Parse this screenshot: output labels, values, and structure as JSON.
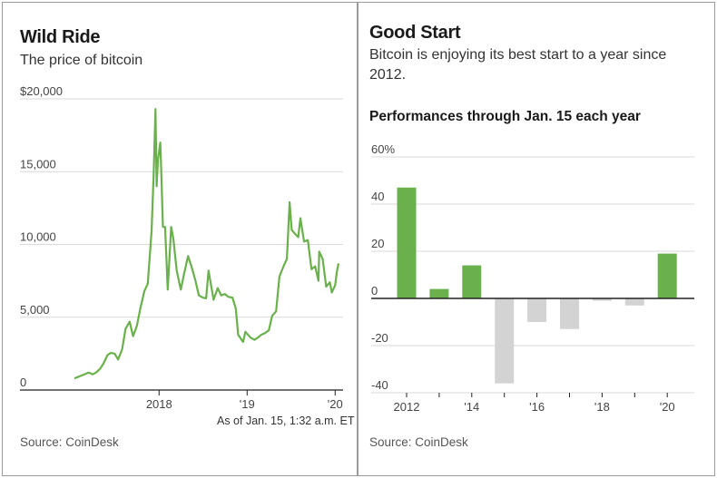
{
  "left": {
    "title": "Wild Ride",
    "subtitle": "The price of bitcoin",
    "note": "As of Jan. 15, 1:32 a.m. ET",
    "source": "Source: CoinDesk"
  },
  "right": {
    "title": "Good Start",
    "subtitle": "Bitcoin is enjoying its best start to a year since 2012.",
    "heading": "Performances through Jan. 15 each year",
    "source": "Source: CoinDesk"
  },
  "colors": {
    "green": "#6ab04c",
    "gray": "#d3d3d3",
    "grid": "#d9d9d9",
    "axis": "#222222"
  },
  "chart_data": [
    {
      "type": "line",
      "title": "Wild Ride",
      "subtitle": "The price of bitcoin",
      "x_ticks": [
        "2018",
        "'19",
        "'20"
      ],
      "y_ticks": [
        "$20,000",
        "15,000",
        "10,000",
        "5,000",
        "0"
      ],
      "ylim": [
        0,
        20000
      ],
      "xlim": [
        "2017-01-15",
        "2020-01-15"
      ],
      "series": [
        {
          "color": "#6ab04c",
          "points": [
            [
              "2017-01-15",
              800
            ],
            [
              "2017-02-15",
              1000
            ],
            [
              "2017-03-15",
              1200
            ],
            [
              "2017-04-01",
              1080
            ],
            [
              "2017-04-15",
              1200
            ],
            [
              "2017-05-01",
              1450
            ],
            [
              "2017-05-15",
              1800
            ],
            [
              "2017-06-01",
              2400
            ],
            [
              "2017-06-15",
              2550
            ],
            [
              "2017-07-01",
              2500
            ],
            [
              "2017-07-15",
              2100
            ],
            [
              "2017-08-01",
              2800
            ],
            [
              "2017-08-15",
              4200
            ],
            [
              "2017-09-01",
              4700
            ],
            [
              "2017-09-15",
              3700
            ],
            [
              "2017-10-01",
              4400
            ],
            [
              "2017-10-15",
              5600
            ],
            [
              "2017-11-01",
              6800
            ],
            [
              "2017-11-15",
              7300
            ],
            [
              "2017-12-01",
              10900
            ],
            [
              "2017-12-10",
              15000
            ],
            [
              "2017-12-17",
              19300
            ],
            [
              "2017-12-22",
              14000
            ],
            [
              "2017-12-27",
              15800
            ],
            [
              "2018-01-06",
              17000
            ],
            [
              "2018-01-10",
              15000
            ],
            [
              "2018-01-17",
              11200
            ],
            [
              "2018-01-26",
              11200
            ],
            [
              "2018-02-06",
              6900
            ],
            [
              "2018-02-15",
              9600
            ],
            [
              "2018-02-20",
              11200
            ],
            [
              "2018-03-01",
              10400
            ],
            [
              "2018-03-15",
              8200
            ],
            [
              "2018-04-01",
              6900
            ],
            [
              "2018-04-15",
              8000
            ],
            [
              "2018-05-01",
              9200
            ],
            [
              "2018-05-15",
              8500
            ],
            [
              "2018-06-01",
              7500
            ],
            [
              "2018-06-15",
              6500
            ],
            [
              "2018-07-01",
              6350
            ],
            [
              "2018-07-15",
              6300
            ],
            [
              "2018-07-25",
              8200
            ],
            [
              "2018-08-15",
              6200
            ],
            [
              "2018-09-01",
              7000
            ],
            [
              "2018-09-15",
              6500
            ],
            [
              "2018-10-01",
              6600
            ],
            [
              "2018-10-15",
              6400
            ],
            [
              "2018-11-01",
              6350
            ],
            [
              "2018-11-15",
              5600
            ],
            [
              "2018-11-25",
              3800
            ],
            [
              "2018-12-15",
              3300
            ],
            [
              "2018-12-25",
              4000
            ],
            [
              "2019-01-15",
              3600
            ],
            [
              "2019-02-01",
              3450
            ],
            [
              "2019-02-15",
              3600
            ],
            [
              "2019-03-01",
              3800
            ],
            [
              "2019-03-15",
              3900
            ],
            [
              "2019-04-01",
              4100
            ],
            [
              "2019-04-15",
              5100
            ],
            [
              "2019-05-01",
              5400
            ],
            [
              "2019-05-15",
              7800
            ],
            [
              "2019-06-01",
              8500
            ],
            [
              "2019-06-15",
              9000
            ],
            [
              "2019-06-26",
              12900
            ],
            [
              "2019-07-05",
              11000
            ],
            [
              "2019-07-15",
              10800
            ],
            [
              "2019-08-01",
              10500
            ],
            [
              "2019-08-10",
              11800
            ],
            [
              "2019-08-25",
              10200
            ],
            [
              "2019-09-10",
              10300
            ],
            [
              "2019-09-25",
              8300
            ],
            [
              "2019-10-10",
              8500
            ],
            [
              "2019-10-24",
              7500
            ],
            [
              "2019-10-27",
              9500
            ],
            [
              "2019-11-10",
              9000
            ],
            [
              "2019-11-25",
              7100
            ],
            [
              "2019-12-10",
              7400
            ],
            [
              "2019-12-18",
              6700
            ],
            [
              "2020-01-01",
              7200
            ],
            [
              "2020-01-08",
              8100
            ],
            [
              "2020-01-15",
              8700
            ]
          ]
        }
      ]
    },
    {
      "type": "bar",
      "title": "Good Start",
      "ylabel": "Performances through Jan. 15 each year",
      "categories": [
        "2012",
        "2013",
        "2014",
        "2015",
        "2016",
        "2017",
        "2018",
        "2019",
        "2020"
      ],
      "values": [
        47,
        4,
        14,
        -36,
        -10,
        -13,
        -1,
        -3,
        19
      ],
      "x_tick_labels": [
        "2012",
        "",
        "'14",
        "",
        "'16",
        "",
        "'18",
        "",
        "'20"
      ],
      "y_ticks": [
        "60%",
        "40",
        "20",
        "0",
        "-20",
        "-40"
      ],
      "ylim": [
        -40,
        60
      ],
      "positive_color": "#6ab04c",
      "negative_color": "#d3d3d3"
    }
  ]
}
